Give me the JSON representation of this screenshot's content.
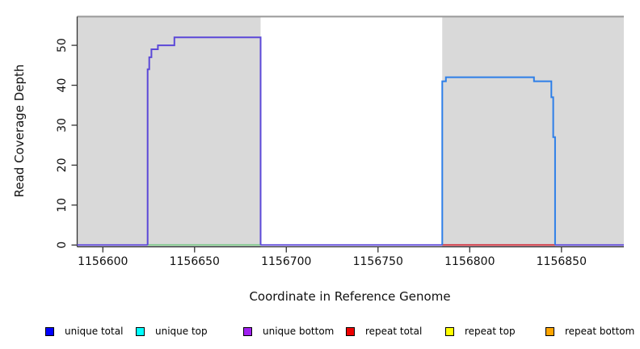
{
  "chart_data": {
    "type": "line",
    "title": "",
    "xlabel": "Coordinate in Reference Genome",
    "ylabel": "Read Coverage Depth",
    "xlim": [
      1156586,
      1156884
    ],
    "ylim": [
      0,
      57.2
    ],
    "x_ticks": [
      1156600,
      1156650,
      1156700,
      1156750,
      1156800,
      1156850
    ],
    "y_ticks": [
      0,
      10,
      20,
      30,
      40,
      50
    ],
    "grid": false,
    "background": "#ffffff",
    "shaded_regions": [
      {
        "name": "aligned-region-left",
        "x0": 1156586,
        "x1": 1156686,
        "color": "#d9d9d9"
      },
      {
        "name": "aligned-region-right",
        "x0": 1156785,
        "x1": 1156884,
        "color": "#d9d9d9"
      }
    ],
    "series": [
      {
        "name": "zero-baseline",
        "color": "#6a55dd",
        "points": [
          [
            1156586,
            0
          ],
          [
            1156884,
            0
          ]
        ]
      },
      {
        "name": "zero-segment-left-green",
        "color": "#90d890",
        "points": [
          [
            1156624.4,
            0
          ],
          [
            1156686,
            0
          ]
        ]
      },
      {
        "name": "zero-segment-right-red",
        "color": "#e04848",
        "points": [
          [
            1156785,
            0
          ],
          [
            1156846.5,
            0
          ]
        ]
      },
      {
        "name": "unique-bottom-coverage-block",
        "color": "#5b48d8",
        "points": [
          [
            1156624.4,
            0
          ],
          [
            1156624.4,
            44
          ],
          [
            1156625.3,
            44
          ],
          [
            1156625.3,
            47
          ],
          [
            1156626.5,
            47
          ],
          [
            1156626.5,
            49
          ],
          [
            1156630,
            49
          ],
          [
            1156630,
            50
          ],
          [
            1156639,
            50
          ],
          [
            1156639,
            52
          ],
          [
            1156686,
            52
          ],
          [
            1156686,
            0
          ]
        ]
      },
      {
        "name": "unique-top-coverage-block",
        "color": "#2e7fe8",
        "points": [
          [
            1156785,
            0
          ],
          [
            1156785,
            41
          ],
          [
            1156787,
            41
          ],
          [
            1156787,
            42
          ],
          [
            1156835,
            42
          ],
          [
            1156835,
            41
          ],
          [
            1156844.5,
            41
          ],
          [
            1156844.5,
            37
          ],
          [
            1156845.5,
            37
          ],
          [
            1156845.5,
            27
          ],
          [
            1156846.5,
            27
          ],
          [
            1156846.5,
            0
          ]
        ]
      }
    ],
    "legend": [
      {
        "label": "unique total",
        "color": "#0000ff"
      },
      {
        "label": "unique top",
        "color": "#00ffff"
      },
      {
        "label": "unique bottom",
        "color": "#a020f0"
      },
      {
        "label": "repeat total",
        "color": "#ee0000"
      },
      {
        "label": "repeat top",
        "color": "#ffff00"
      },
      {
        "label": "repeat bottom",
        "color": "#ffa500"
      }
    ],
    "legend_position": "bottom"
  }
}
